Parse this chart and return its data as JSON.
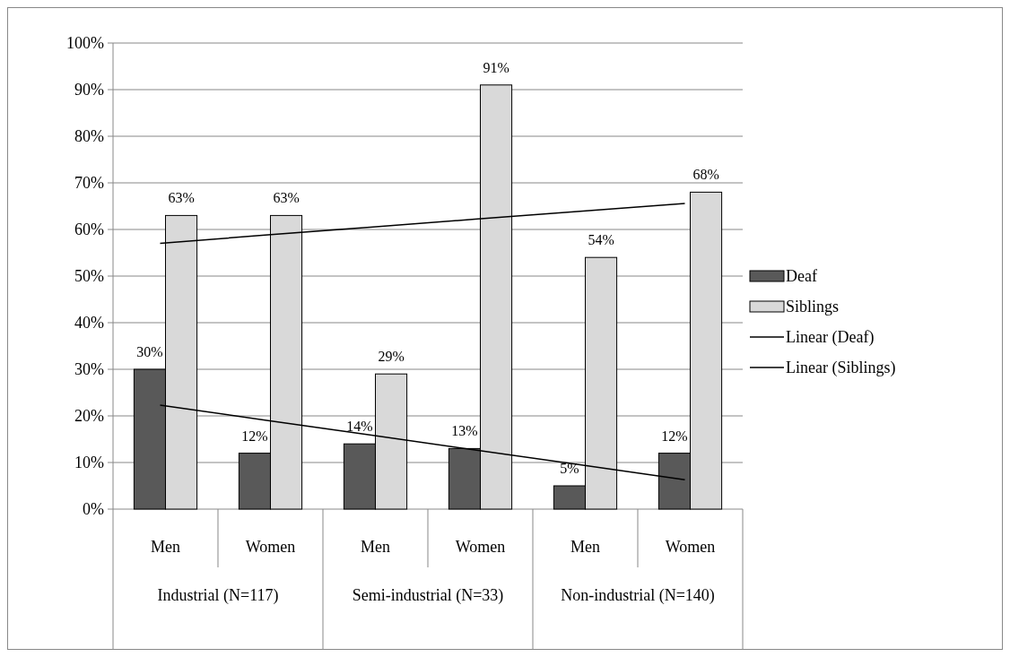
{
  "chart_data": {
    "type": "bar",
    "categories": [
      "Men",
      "Women",
      "Men",
      "Women",
      "Men",
      "Women"
    ],
    "annotations": [
      "Industrial (N=117)",
      "Semi-industrial (N=33)",
      "Non-industrial (N=140)"
    ],
    "series": [
      {
        "name": "Deaf",
        "color": "#595959",
        "values": [
          30,
          12,
          14,
          13,
          5,
          12
        ],
        "value_labels": [
          "30%",
          "12%",
          "14%",
          "13%",
          "5%",
          "12%"
        ]
      },
      {
        "name": "Siblings",
        "color": "#d9d9d9",
        "values": [
          63,
          63,
          29,
          91,
          54,
          68
        ],
        "value_labels": [
          "63%",
          "63%",
          "29%",
          "91%",
          "54%",
          "68%"
        ]
      },
      {
        "name": "Linear (Deaf)",
        "type": "line",
        "color": "#000000",
        "values": [
          22.3,
          19.1,
          15.9,
          12.7,
          9.5,
          6.3
        ]
      },
      {
        "name": "Linear (Siblings)",
        "type": "line",
        "color": "#000000",
        "values": [
          57.0,
          58.8,
          60.5,
          62.2,
          63.9,
          65.6
        ]
      }
    ],
    "ylim": [
      0,
      100
    ],
    "yticks": [
      {
        "value": 0,
        "label": "0%"
      },
      {
        "value": 10,
        "label": "10%"
      },
      {
        "value": 20,
        "label": "20%"
      },
      {
        "value": 30,
        "label": "30%"
      },
      {
        "value": 40,
        "label": "40%"
      },
      {
        "value": 50,
        "label": "50%"
      },
      {
        "value": 60,
        "label": "60%"
      },
      {
        "value": 70,
        "label": "70%"
      },
      {
        "value": 80,
        "label": "80%"
      },
      {
        "value": 90,
        "label": "90%"
      },
      {
        "value": 100,
        "label": "100%"
      }
    ],
    "grid": "y",
    "legend": "right"
  }
}
